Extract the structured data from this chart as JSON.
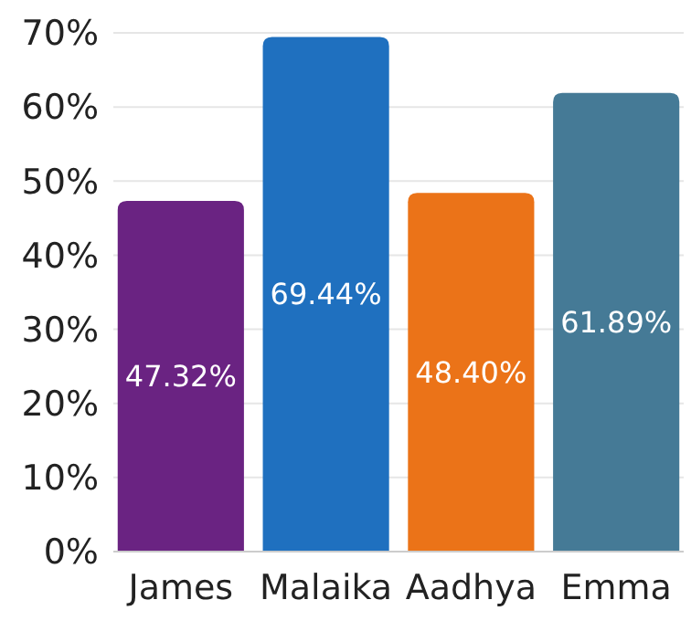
{
  "chart_data": {
    "type": "bar",
    "categories": [
      "James",
      "Malaika",
      "Aadhya",
      "Emma"
    ],
    "values": [
      47.32,
      69.44,
      48.4,
      61.89
    ],
    "colors": [
      "#6a2382",
      "#1f70bf",
      "#eb7318",
      "#457a96"
    ],
    "value_labels": [
      "47.32%",
      "69.44%",
      "48.40%",
      "61.89%"
    ],
    "ylim": [
      0,
      70
    ],
    "yticks": [
      {
        "value": 0,
        "label": "0%"
      },
      {
        "value": 10,
        "label": "10%"
      },
      {
        "value": 20,
        "label": "20%"
      },
      {
        "value": 30,
        "label": "30%"
      },
      {
        "value": 40,
        "label": "40%"
      },
      {
        "value": 50,
        "label": "50%"
      },
      {
        "value": 60,
        "label": "60%"
      },
      {
        "value": 70,
        "label": "70%"
      }
    ],
    "grid": "y"
  }
}
